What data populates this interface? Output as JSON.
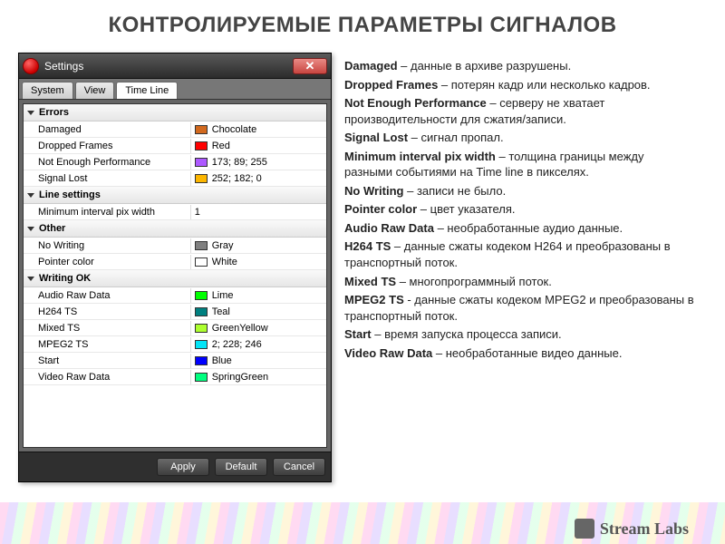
{
  "page": {
    "title": "КОНТРОЛИРУЕМЫЕ ПАРАМЕТРЫ СИГНАЛОВ"
  },
  "window": {
    "title": "Settings",
    "close_glyph": "✕",
    "tabs": [
      {
        "label": "System",
        "active": false
      },
      {
        "label": "View",
        "active": false
      },
      {
        "label": "Time Line",
        "active": true
      }
    ],
    "sections": [
      {
        "title": "Errors",
        "rows": [
          {
            "label": "Damaged",
            "color": "#d2691e",
            "value": "Chocolate"
          },
          {
            "label": "Dropped Frames",
            "color": "#ff0000",
            "value": "Red"
          },
          {
            "label": "Not Enough Performance",
            "color": "#ad59ff",
            "value": "173; 89; 255"
          },
          {
            "label": "Signal Lost",
            "color": "#fcb600",
            "value": "252; 182; 0"
          }
        ]
      },
      {
        "title": "Line settings",
        "rows": [
          {
            "label": "Minimum interval pix width",
            "value": "1"
          }
        ]
      },
      {
        "title": "Other",
        "rows": [
          {
            "label": "No Writing",
            "color": "#808080",
            "value": "Gray"
          },
          {
            "label": "Pointer color",
            "color": "#ffffff",
            "value": "White"
          }
        ]
      },
      {
        "title": "Writing OK",
        "rows": [
          {
            "label": "Audio Raw Data",
            "color": "#00ff00",
            "value": "Lime"
          },
          {
            "label": "H264 TS",
            "color": "#008080",
            "value": "Teal"
          },
          {
            "label": "Mixed TS",
            "color": "#adff2f",
            "value": "GreenYellow"
          },
          {
            "label": "MPEG2 TS",
            "color": "#02e4f6",
            "value": "2; 228; 246"
          },
          {
            "label": "Start",
            "color": "#0000ff",
            "value": "Blue"
          },
          {
            "label": "Video Raw Data",
            "color": "#00ff7f",
            "value": "SpringGreen"
          }
        ]
      }
    ],
    "buttons": {
      "apply": "Apply",
      "default": "Default",
      "cancel": "Cancel"
    }
  },
  "definitions": [
    {
      "term": "Damaged",
      "sep": " – ",
      "text": "данные в архиве разрушены."
    },
    {
      "term": "Dropped Frames",
      "sep": " – ",
      "text": "потерян кадр или несколько кадров."
    },
    {
      "term": "Not Enough Performance",
      "sep": " – ",
      "text": "серверу не хватает производительности для сжатия/записи."
    },
    {
      "term": "Signal Lost",
      "sep": " – ",
      "text": "сигнал пропал."
    },
    {
      "term": "Minimum interval pix width",
      "sep": " – ",
      "text": "толщина границы между разными событиями на Time line в пикселях."
    },
    {
      "term": "No Writing",
      "sep": " – ",
      "text": "записи не было."
    },
    {
      "term": "Pointer color",
      "sep": " – ",
      "text": "цвет указателя."
    },
    {
      "term": "Audio Raw Data",
      "sep": " – ",
      "text": "необработанные аудио данные."
    },
    {
      "term": "H264 TS",
      "sep": " – ",
      "text": "данные сжаты кодеком H264 и преобразованы в транспортный поток."
    },
    {
      "term": "Mixed TS",
      "sep": " – ",
      "text": "многопрограммный поток."
    },
    {
      "term": "MPEG2 TS",
      "sep": " - ",
      "text": "данные сжаты кодеком MPEG2 и преобразованы в транспортный поток."
    },
    {
      "term": "Start",
      "sep": " – ",
      "text": "время запуска процесса записи."
    },
    {
      "term": "Video Raw Data",
      "sep": " – ",
      "text": "необработанные видео данные."
    }
  ],
  "logo": {
    "text": "Stream Labs"
  }
}
